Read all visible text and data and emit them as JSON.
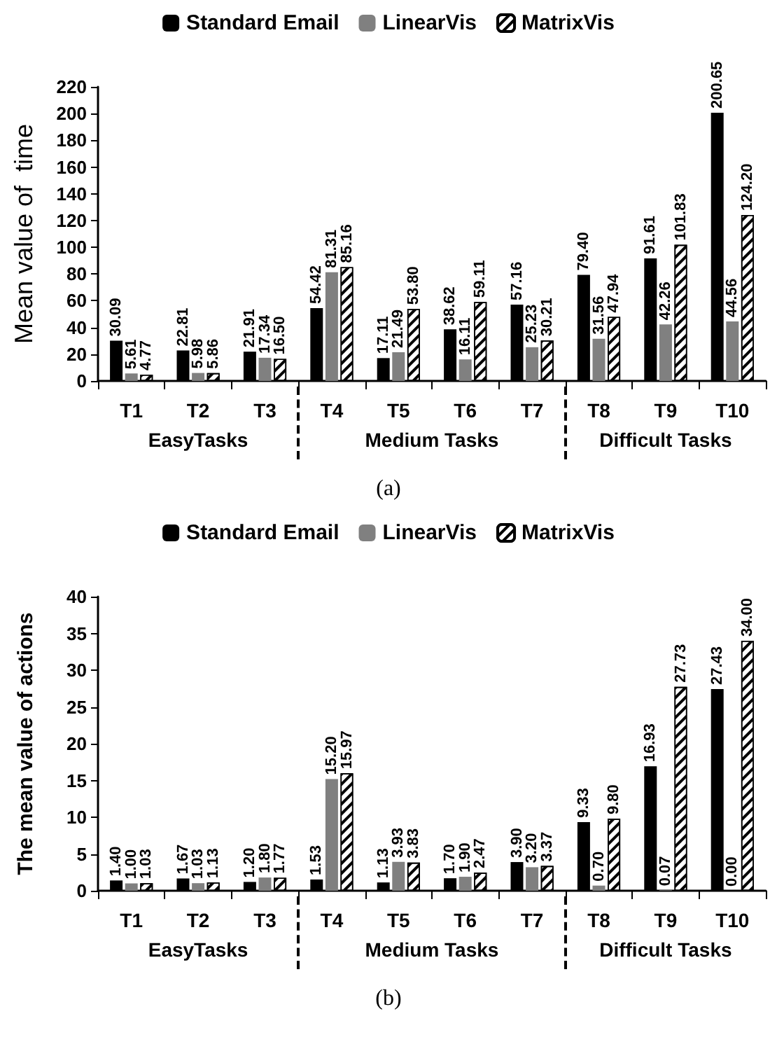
{
  "chart_data": [
    {
      "type": "bar",
      "title": "(a)",
      "ylabel": "Mean value of  time",
      "categories": [
        "T1",
        "T2",
        "T3",
        "T4",
        "T5",
        "T6",
        "T7",
        "T8",
        "T9",
        "T10"
      ],
      "ylim": [
        0,
        220
      ],
      "yticks": [
        0,
        20,
        40,
        60,
        80,
        100,
        120,
        140,
        160,
        180,
        200,
        220
      ],
      "grid": false,
      "legend": "top",
      "annotations": [
        "EasyTasks",
        "Medium Tasks",
        "Difficult Tasks"
      ],
      "series": [
        {
          "name": "Standard Email",
          "color": "#000000",
          "values": [
            30.09,
            22.81,
            21.91,
            54.42,
            17.11,
            38.62,
            57.16,
            79.4,
            91.61,
            200.65
          ],
          "value_labels": [
            "30.09",
            "22.81",
            "21.91",
            "54.42",
            "17.11",
            "38.62",
            "57.16",
            "79.40",
            "91.61",
            "200.65"
          ]
        },
        {
          "name": "LinearVis",
          "color": "#808080",
          "values": [
            5.61,
            5.98,
            17.34,
            81.31,
            21.49,
            16.11,
            25.23,
            31.56,
            42.26,
            44.56
          ],
          "value_labels": [
            "5.61",
            "5.98",
            "17.34",
            "81.31",
            "21.49",
            "16.11",
            "25.23",
            "31.56",
            "42.26",
            "44.56"
          ]
        },
        {
          "name": "MatrixVis",
          "color": "#ffffff",
          "values": [
            4.77,
            5.86,
            16.5,
            85.16,
            53.8,
            59.11,
            30.21,
            47.94,
            101.83,
            124.2
          ],
          "value_labels": [
            "4.77",
            "5.86",
            "16.50",
            "85.16",
            "53.80",
            "59.11",
            "30.21",
            "47.94",
            "101.83",
            "124.20"
          ]
        }
      ]
    },
    {
      "type": "bar",
      "title": "(b)",
      "ylabel": "The mean value of actions",
      "categories": [
        "T1",
        "T2",
        "T3",
        "T4",
        "T5",
        "T6",
        "T7",
        "T8",
        "T9",
        "T10"
      ],
      "ylim": [
        0,
        40
      ],
      "yticks": [
        0,
        5,
        10,
        15,
        20,
        25,
        30,
        35,
        40
      ],
      "grid": false,
      "legend": "top",
      "annotations": [
        "EasyTasks",
        "Medium Tasks",
        "Difficult Tasks"
      ],
      "series": [
        {
          "name": "Standard Email",
          "color": "#000000",
          "values": [
            1.4,
            1.67,
            1.2,
            1.53,
            1.13,
            1.7,
            3.9,
            9.33,
            16.93,
            27.43
          ],
          "value_labels": [
            "1.40",
            "1.67",
            "1.20",
            "1.53",
            "1.13",
            "1.70",
            "3.90",
            "9.33",
            "16.93",
            "27.43"
          ]
        },
        {
          "name": "LinearVis",
          "color": "#808080",
          "values": [
            1.0,
            1.03,
            1.8,
            15.2,
            3.93,
            1.9,
            3.2,
            0.7,
            0.07,
            0.0
          ],
          "value_labels": [
            "1.00",
            "1.03",
            "1.80",
            "15.20",
            "3.93",
            "1.90",
            "3.20",
            "0.70",
            "0.07",
            "0.00"
          ]
        },
        {
          "name": "MatrixVis",
          "color": "#ffffff",
          "values": [
            1.03,
            1.13,
            1.77,
            15.97,
            3.83,
            2.47,
            3.37,
            9.8,
            27.73,
            34.0
          ],
          "value_labels": [
            "1.03",
            "1.13",
            "1.77",
            "15.97",
            "3.83",
            "2.47",
            "3.37",
            "9.80",
            "27.73",
            "34.00"
          ]
        }
      ]
    }
  ]
}
